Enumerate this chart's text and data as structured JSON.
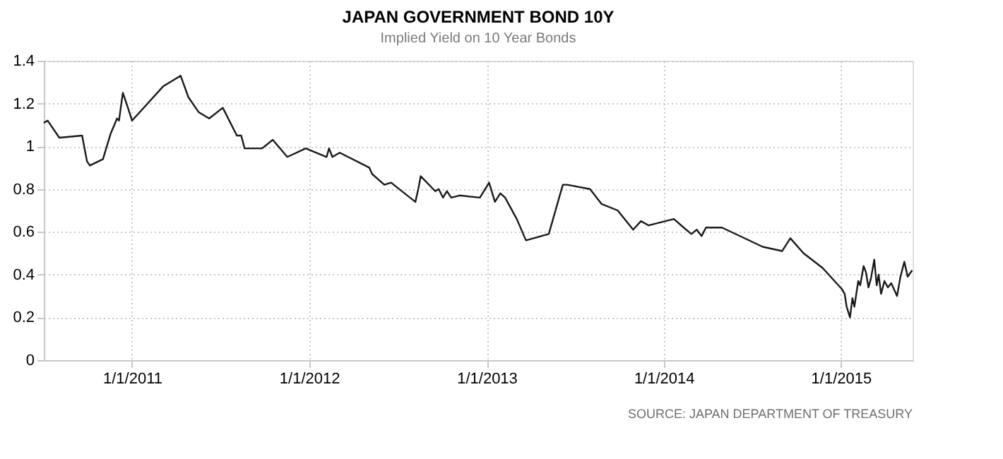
{
  "chart_data": {
    "type": "line",
    "title": "JAPAN GOVERNMENT BOND 10Y",
    "subtitle": "Implied Yield on 10 Year Bonds",
    "annotations": [
      "SOURCE: JAPAN DEPARTMENT OF TREASURY"
    ],
    "x": [
      "2010-07-03",
      "2010-07-11",
      "2010-08-04",
      "2010-09-20",
      "2010-09-30",
      "2010-10-06",
      "2010-11-02",
      "2010-11-18",
      "2010-12-01",
      "2010-12-05",
      "2010-12-13",
      "2010-12-22",
      "2011-01-01",
      "2011-03-06",
      "2011-04-11",
      "2011-04-27",
      "2011-05-18",
      "2011-06-09",
      "2011-07-07",
      "2011-08-05",
      "2011-08-14",
      "2011-08-21",
      "2011-09-26",
      "2011-10-18",
      "2011-11-17",
      "2011-12-25",
      "2012-02-06",
      "2012-02-11",
      "2012-02-18",
      "2012-03-04",
      "2012-05-04",
      "2012-05-10",
      "2012-06-04",
      "2012-06-18",
      "2012-08-07",
      "2012-08-13",
      "2012-08-18",
      "2012-09-17",
      "2012-09-24",
      "2012-10-03",
      "2012-10-11",
      "2012-10-20",
      "2012-11-06",
      "2012-12-18",
      "2013-01-06",
      "2013-01-18",
      "2013-01-29",
      "2013-02-08",
      "2013-03-04",
      "2013-03-23",
      "2013-05-09",
      "2013-06-07",
      "2013-06-16",
      "2013-08-02",
      "2013-08-26",
      "2013-09-28",
      "2013-10-30",
      "2013-11-15",
      "2013-12-01",
      "2014-01-22",
      "2014-02-11",
      "2014-02-27",
      "2014-03-10",
      "2014-03-20",
      "2014-03-29",
      "2014-05-01",
      "2014-07-24",
      "2014-09-02",
      "2014-09-19",
      "2014-10-16",
      "2014-11-25",
      "2015-01-04",
      "2015-01-09",
      "2015-01-13",
      "2015-01-20",
      "2015-01-25",
      "2015-01-29",
      "2015-02-06",
      "2015-02-10",
      "2015-02-17",
      "2015-02-22",
      "2015-02-27",
      "2015-03-04",
      "2015-03-11",
      "2015-03-16",
      "2015-03-20",
      "2015-03-25",
      "2015-04-01",
      "2015-04-08",
      "2015-04-15",
      "2015-04-27",
      "2015-05-04",
      "2015-05-12",
      "2015-05-19",
      "2015-05-28"
    ],
    "series": [
      {
        "color": "#1a1a1a",
        "values": [
          1.11,
          1.12,
          1.04,
          1.05,
          0.93,
          0.91,
          0.94,
          1.06,
          1.13,
          1.12,
          1.25,
          1.19,
          1.12,
          1.28,
          1.33,
          1.23,
          1.16,
          1.13,
          1.18,
          1.05,
          1.05,
          0.99,
          0.99,
          1.03,
          0.95,
          0.99,
          0.95,
          0.99,
          0.95,
          0.97,
          0.9,
          0.87,
          0.82,
          0.83,
          0.74,
          0.8,
          0.86,
          0.79,
          0.8,
          0.76,
          0.79,
          0.76,
          0.77,
          0.76,
          0.83,
          0.74,
          0.78,
          0.76,
          0.66,
          0.56,
          0.59,
          0.82,
          0.82,
          0.8,
          0.73,
          0.7,
          0.61,
          0.65,
          0.63,
          0.66,
          0.62,
          0.59,
          0.61,
          0.58,
          0.62,
          0.62,
          0.53,
          0.51,
          0.57,
          0.5,
          0.43,
          0.33,
          0.31,
          0.25,
          0.2,
          0.29,
          0.25,
          0.37,
          0.35,
          0.44,
          0.41,
          0.34,
          0.38,
          0.47,
          0.35,
          0.4,
          0.31,
          0.37,
          0.34,
          0.36,
          0.3,
          0.39,
          0.46,
          0.39,
          0.42
        ]
      }
    ],
    "xlim": [
      "2010-07-03",
      "2015-05-29"
    ],
    "xticks": [
      {
        "value": "2011-01-01",
        "label": "1/1/2011"
      },
      {
        "value": "2012-01-01",
        "label": "1/1/2012"
      },
      {
        "value": "2013-01-01",
        "label": "1/1/2013"
      },
      {
        "value": "2014-01-01",
        "label": "1/1/2014"
      },
      {
        "value": "2015-01-01",
        "label": "1/1/2015"
      }
    ],
    "ylim": [
      0,
      1.4
    ],
    "yticks": [
      0,
      0.2,
      0.4,
      0.6,
      0.8,
      1,
      1.2,
      1.4
    ],
    "grid": true,
    "marker": "none",
    "line_style": "solid"
  }
}
